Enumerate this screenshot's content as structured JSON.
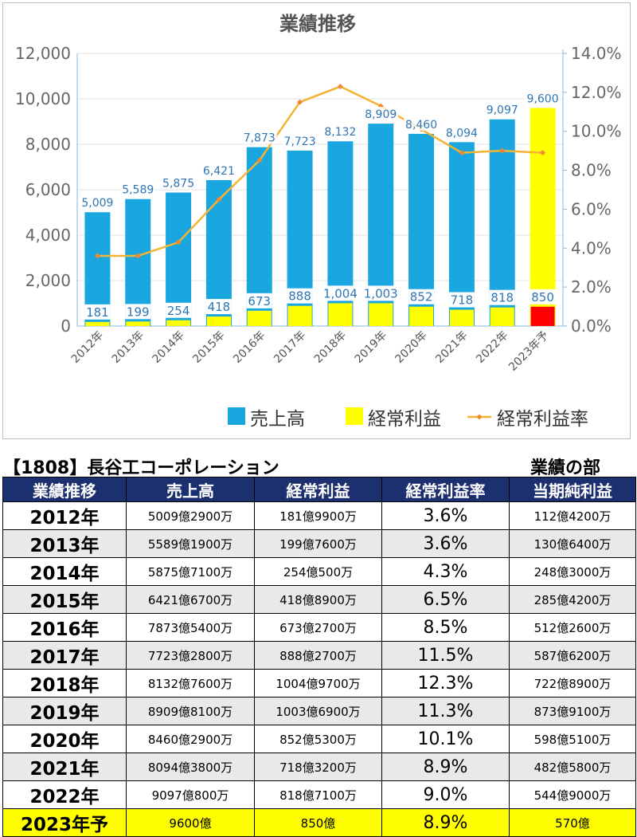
{
  "chart_data": {
    "type": "bar",
    "title": "業績推移",
    "categories": [
      "2012年",
      "2013年",
      "2014年",
      "2015年",
      "2016年",
      "2017年",
      "2018年",
      "2019年",
      "2020年",
      "2021年",
      "2022年",
      "2023年予"
    ],
    "series": [
      {
        "name": "売上高",
        "type": "bar",
        "axis": "left",
        "values": [
          5009,
          5589,
          5875,
          6421,
          7873,
          7723,
          8132,
          8909,
          8460,
          8094,
          9097,
          9600
        ],
        "labels": [
          "5,009",
          "5,589",
          "5,875",
          "6,421",
          "7,873",
          "7,723",
          "8,132",
          "8,909",
          "8,460",
          "8,094",
          "9,097",
          "9,600"
        ]
      },
      {
        "name": "経常利益",
        "type": "bar",
        "axis": "left",
        "values": [
          181,
          199,
          254,
          418,
          673,
          888,
          1004,
          1003,
          852,
          718,
          818,
          850
        ],
        "labels": [
          "181",
          "199",
          "254",
          "418",
          "673",
          "888",
          "1,004",
          "1,003",
          "852",
          "718",
          "818",
          "850"
        ]
      },
      {
        "name": "経常利益率",
        "type": "line",
        "axis": "right",
        "values": [
          3.6,
          3.6,
          4.3,
          6.5,
          8.5,
          11.5,
          12.3,
          11.3,
          10.1,
          8.9,
          9.0,
          8.9
        ]
      }
    ],
    "ylim": [
      0,
      12000
    ],
    "yticks": [
      "0",
      "2,000",
      "4,000",
      "6,000",
      "8,000",
      "10,000",
      "12,000"
    ],
    "y2lim": [
      0,
      14
    ],
    "y2ticks": [
      "0.0%",
      "2.0%",
      "4.0%",
      "6.0%",
      "8.0%",
      "10.0%",
      "12.0%",
      "14.0%"
    ],
    "legend_position": "bottom",
    "grid": true
  },
  "colors": {
    "sales": "#1aa7e0",
    "ordinary": "#ffff00",
    "ordinary_forecast": "#ff0000",
    "sales_forecast": "#ffff00",
    "rate_line": "#f5b336",
    "rate_marker": "#f08a30",
    "label_text": "#2e75b6",
    "axis_text": "#666666",
    "axis_line": "#8ab7d8",
    "header_bg": "#1c2f6e"
  },
  "company_title": "【1808】長谷工コーポレーション",
  "section_label": "業績の部",
  "table": {
    "headers": [
      "業績推移",
      "売上高",
      "経常利益",
      "経常利益率",
      "当期純利益"
    ],
    "rows": [
      [
        "2012年",
        "5009億2900万",
        "181億9900万",
        "3.6%",
        "112億4200万"
      ],
      [
        "2013年",
        "5589億1900万",
        "199億7600万",
        "3.6%",
        "130億6400万"
      ],
      [
        "2014年",
        "5875億7100万",
        "254億500万",
        "4.3%",
        "248億3000万"
      ],
      [
        "2015年",
        "6421億6700万",
        "418億8900万",
        "6.5%",
        "285億4200万"
      ],
      [
        "2016年",
        "7873億5400万",
        "673億2700万",
        "8.5%",
        "512億2600万"
      ],
      [
        "2017年",
        "7723億2800万",
        "888億2700万",
        "11.5%",
        "587億6200万"
      ],
      [
        "2018年",
        "8132億7600万",
        "1004億9700万",
        "12.3%",
        "722億8900万"
      ],
      [
        "2019年",
        "8909億8100万",
        "1003億6900万",
        "11.3%",
        "873億9100万"
      ],
      [
        "2020年",
        "8460億2900万",
        "852億5300万",
        "10.1%",
        "598億5100万"
      ],
      [
        "2021年",
        "8094億3800万",
        "718億3200万",
        "8.9%",
        "482億5800万"
      ],
      [
        "2022年",
        "9097億800万",
        "818億7100万",
        "9.0%",
        "544億9000万"
      ],
      [
        "2023年予",
        "9600億",
        "850億",
        "8.9%",
        "570億"
      ]
    ]
  }
}
